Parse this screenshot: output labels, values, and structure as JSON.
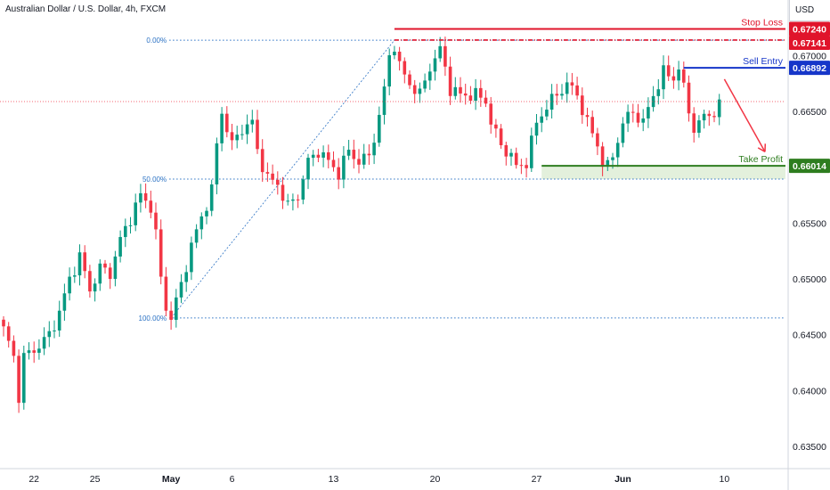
{
  "header": {
    "symbol_title": "Australian Dollar / U.S. Dollar, 4h, FXCM",
    "currency": "USD"
  },
  "colors": {
    "up": "#089981",
    "down": "#f23645",
    "stop": "#e0142b",
    "entry": "#1636c9",
    "profit": "#2e7d1f",
    "fib": "#2b72c4",
    "arrow": "#f23645",
    "zone": "#e3f0dc"
  },
  "chart_data": {
    "type": "candlestick",
    "title": "Australian Dollar / U.S. Dollar, 4h, FXCM",
    "ylim": [
      0.633,
      0.675
    ],
    "y_ticks": [
      0.635,
      0.64,
      0.645,
      0.65,
      0.655,
      0.665,
      0.67
    ],
    "y_tick_labels": [
      "0.63500",
      "0.64000",
      "0.64500",
      "0.65000",
      "0.65500",
      "0.66500",
      "0.67000"
    ],
    "x_tick_labels": [
      "22",
      "25",
      "May",
      "6",
      "13",
      "20",
      "27",
      "Jun",
      "10"
    ],
    "x_tick_bars": [
      6,
      18,
      33,
      45,
      65,
      85,
      105,
      122,
      142
    ],
    "bars_total": 155,
    "close_anchors": [
      [
        0,
        0.6455
      ],
      [
        2,
        0.643
      ],
      [
        3,
        0.6395
      ],
      [
        4,
        0.643
      ],
      [
        7,
        0.644
      ],
      [
        9,
        0.645
      ],
      [
        11,
        0.647
      ],
      [
        13,
        0.65
      ],
      [
        15,
        0.652
      ],
      [
        17,
        0.649
      ],
      [
        19,
        0.651
      ],
      [
        21,
        0.6505
      ],
      [
        23,
        0.6535
      ],
      [
        25,
        0.6555
      ],
      [
        27,
        0.6575
      ],
      [
        29,
        0.6565
      ],
      [
        30,
        0.654
      ],
      [
        31,
        0.65
      ],
      [
        32,
        0.6475
      ],
      [
        33,
        0.6465
      ],
      [
        35,
        0.6495
      ],
      [
        37,
        0.653
      ],
      [
        39,
        0.6555
      ],
      [
        41,
        0.658
      ],
      [
        42,
        0.662
      ],
      [
        43,
        0.665
      ],
      [
        45,
        0.662
      ],
      [
        47,
        0.6635
      ],
      [
        49,
        0.664
      ],
      [
        50,
        0.6615
      ],
      [
        52,
        0.659
      ],
      [
        54,
        0.6585
      ],
      [
        55,
        0.6575
      ],
      [
        56,
        0.6565
      ],
      [
        58,
        0.6575
      ],
      [
        60,
        0.6605
      ],
      [
        62,
        0.6615
      ],
      [
        64,
        0.6605
      ],
      [
        66,
        0.6595
      ],
      [
        68,
        0.6615
      ],
      [
        70,
        0.6605
      ],
      [
        72,
        0.661
      ],
      [
        74,
        0.6645
      ],
      [
        75,
        0.667
      ],
      [
        76,
        0.67
      ],
      [
        77,
        0.671
      ],
      [
        78,
        0.669
      ],
      [
        80,
        0.6675
      ],
      [
        82,
        0.6665
      ],
      [
        84,
        0.669
      ],
      [
        86,
        0.6705
      ],
      [
        87,
        0.669
      ],
      [
        88,
        0.667
      ],
      [
        90,
        0.6665
      ],
      [
        93,
        0.6665
      ],
      [
        95,
        0.666
      ],
      [
        96,
        0.664
      ],
      [
        98,
        0.662
      ],
      [
        100,
        0.661
      ],
      [
        101,
        0.66
      ],
      [
        103,
        0.6605
      ],
      [
        105,
        0.664
      ],
      [
        107,
        0.6655
      ],
      [
        109,
        0.6665
      ],
      [
        111,
        0.6675
      ],
      [
        113,
        0.6665
      ],
      [
        115,
        0.664
      ],
      [
        117,
        0.662
      ],
      [
        118,
        0.6605
      ],
      [
        119,
        0.66
      ],
      [
        120,
        0.661
      ],
      [
        122,
        0.664
      ],
      [
        124,
        0.665
      ],
      [
        126,
        0.664
      ],
      [
        128,
        0.6665
      ],
      [
        130,
        0.6685
      ],
      [
        132,
        0.668
      ],
      [
        133,
        0.669
      ],
      [
        134,
        0.667
      ],
      [
        135,
        0.665
      ],
      [
        136,
        0.6635
      ],
      [
        138,
        0.6645
      ],
      [
        140,
        0.665
      ],
      [
        141,
        0.6655
      ]
    ],
    "fib": {
      "from_bar": 33,
      "from_price": 0.6465,
      "to_bar": 77,
      "to_price": 0.6714,
      "labels": [
        "0.00%",
        "50.00%",
        "100.00%"
      ]
    },
    "levels": {
      "stop_loss": {
        "price": 0.6724,
        "label": "Stop Loss",
        "value_label": "0.67240",
        "start_bar": 77
      },
      "swing_high": {
        "price": 0.67141,
        "value_label": "0.67141",
        "start_bar": 77
      },
      "sell_entry": {
        "price": 0.66892,
        "label": "Sell Entry",
        "value_label": "0.66892",
        "start_bar": 134
      },
      "take_profit": {
        "price": 0.66014,
        "label": "Take Profit",
        "value_label": "0.66014",
        "start_bar": 106
      },
      "last_price": 0.6659
    },
    "arrow": {
      "from_bar": 142,
      "from_price": 0.6679,
      "to_bar": 150,
      "to_price": 0.6614
    }
  }
}
